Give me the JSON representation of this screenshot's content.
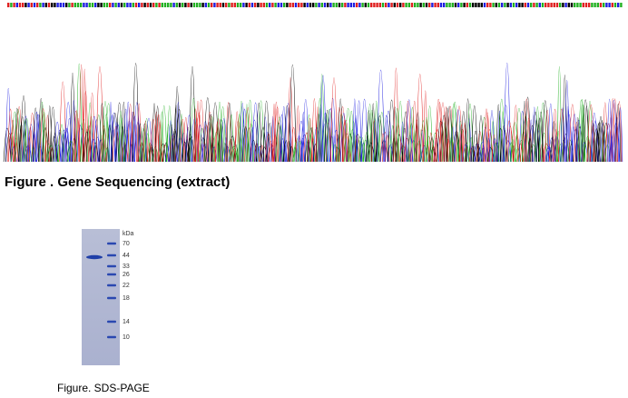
{
  "sequencing": {
    "caption": "Figure . Gene Sequencing (extract)"
  },
  "gel": {
    "unit": "kDa",
    "markers": [
      "70",
      "44",
      "33",
      "26",
      "22",
      "18",
      "14",
      "10"
    ],
    "caption": "Figure. SDS-PAGE"
  }
}
